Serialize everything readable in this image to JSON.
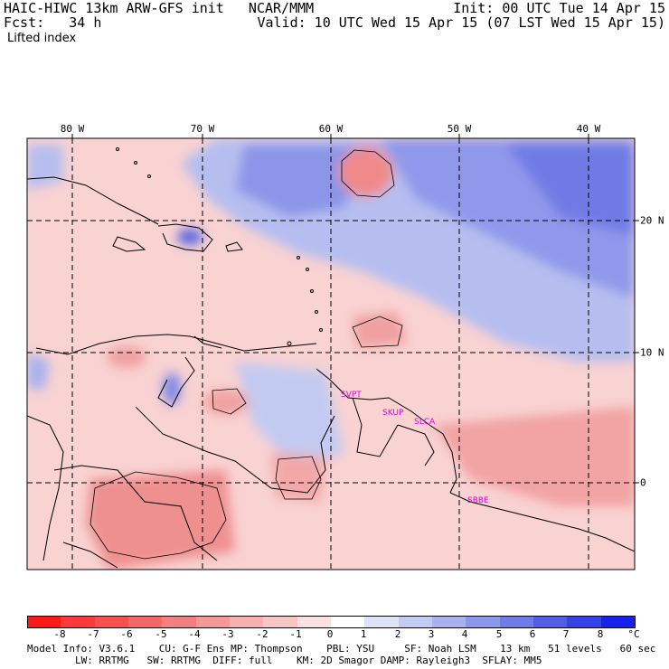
{
  "header": {
    "title": "HAIC-HIWC 13km ARW-GFS init   NCAR/MMM",
    "init": "Init: 00 UTC Tue 14 Apr 15",
    "fcst": "Fcst:   34 h",
    "valid": "Valid: 10 UTC Wed 15 Apr 15 (07 LST Wed 15 Apr 15)",
    "field": "Lifted index"
  },
  "axes": {
    "lon_labels": [
      "80 W",
      "70 W",
      "60 W",
      "50 W",
      "40 W"
    ],
    "lat_labels": [
      "20 N",
      "10 N",
      "0"
    ]
  },
  "stations": [
    "SVPT",
    "SKUP",
    "SLCA",
    "SBBE"
  ],
  "colorbar": {
    "labels": [
      "-8",
      "-7",
      "-6",
      "-5",
      "-4",
      "-3",
      "-2",
      "-1",
      "0",
      "1",
      "2",
      "3",
      "4",
      "5",
      "6",
      "7",
      "8"
    ],
    "unit": "°C",
    "colors": [
      "#ff1a1a",
      "#ff3a3a",
      "#f85050",
      "#f46868",
      "#f28080",
      "#f49898",
      "#f7b0b0",
      "#f9c6c6",
      "#fde0e0",
      "#fefefe",
      "#dde2f6",
      "#c4cbf2",
      "#a9b2ee",
      "#8d97ea",
      "#6f7be6",
      "#525ee4",
      "#3542e4",
      "#1820ec"
    ]
  },
  "footer": {
    "line1": "Model Info: V3.6.1    CU: G-F Ens MP: Thompson    PBL: YSU     SF: Noah LSM    13 km   51 levels   60 sec",
    "line2": "        LW: RRTMG   SW: RRTMG  DIFF: full    KM: 2D Smagor DAMP: Rayleigh3  SFLAY: MM5"
  }
}
